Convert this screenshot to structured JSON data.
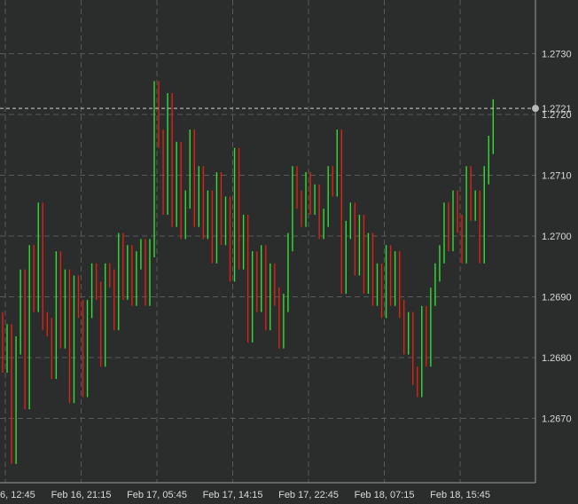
{
  "chart_data": {
    "type": "bar",
    "title": "",
    "xlabel": "",
    "ylabel": "",
    "ylim": [
      1.2659,
      1.2737
    ],
    "grid": true,
    "y_ticks": [
      "1.2670",
      "1.2680",
      "1.2690",
      "1.2700",
      "1.2710",
      "1.2720",
      "1.2730"
    ],
    "x_ticks": [
      "6, 12:45",
      "Feb 16, 21:15",
      "Feb 17, 05:45",
      "Feb 17, 14:15",
      "Feb 17, 22:45",
      "Feb 18, 07:15",
      "Feb 18, 15:45"
    ],
    "x_tick_index": [
      0,
      17,
      34,
      51,
      68,
      85,
      102
    ],
    "current_price": "1.2721",
    "colors": {
      "up": "#33dd33",
      "down": "#dd2211",
      "background": "#2b2c2c",
      "grid": "#5a5a5a",
      "axis": "#9a9a9a",
      "text": "#d9d9d9"
    },
    "bars": [
      [
        1.2686,
        1.2679
      ],
      [
        1.2679,
        1.2684
      ],
      [
        1.2684,
        1.2664
      ],
      [
        1.2664,
        1.2682
      ],
      [
        1.2682,
        1.2693
      ],
      [
        1.2693,
        1.2673
      ],
      [
        1.2673,
        1.2697
      ],
      [
        1.2697,
        1.2689
      ],
      [
        1.2689,
        1.2704
      ],
      [
        1.2704,
        1.2686
      ],
      [
        1.2686,
        1.2685
      ],
      [
        1.2685,
        1.2678
      ],
      [
        1.2678,
        1.2696
      ],
      [
        1.2696,
        1.2683
      ],
      [
        1.2683,
        1.2693
      ],
      [
        1.2693,
        1.2674
      ],
      [
        1.2674,
        1.2692
      ],
      [
        1.2692,
        1.2688
      ],
      [
        1.2688,
        1.2675
      ],
      [
        1.2675,
        1.2688
      ],
      [
        1.2688,
        1.2694
      ],
      [
        1.2694,
        1.2691
      ],
      [
        1.2691,
        1.268
      ],
      [
        1.268,
        1.2694
      ],
      [
        1.2694,
        1.2693
      ],
      [
        1.2693,
        1.2686
      ],
      [
        1.2686,
        1.2699
      ],
      [
        1.2699,
        1.2691
      ],
      [
        1.2691,
        1.2697
      ],
      [
        1.2697,
        1.269
      ],
      [
        1.269,
        1.2696
      ],
      [
        1.2696,
        1.2698
      ],
      [
        1.2698,
        1.269
      ],
      [
        1.269,
        1.2698
      ],
      [
        1.2698,
        1.2724
      ],
      [
        1.2724,
        1.2716
      ],
      [
        1.2716,
        1.2705
      ],
      [
        1.2705,
        1.2722
      ],
      [
        1.2722,
        1.2703
      ],
      [
        1.2703,
        1.2714
      ],
      [
        1.2714,
        1.2701
      ],
      [
        1.2701,
        1.2706
      ],
      [
        1.2706,
        1.2716
      ],
      [
        1.2716,
        1.2703
      ],
      [
        1.2703,
        1.271
      ],
      [
        1.271,
        1.2701
      ],
      [
        1.2701,
        1.2706
      ],
      [
        1.2706,
        1.2697
      ],
      [
        1.2697,
        1.2709
      ],
      [
        1.2709,
        1.27
      ],
      [
        1.27,
        1.2705
      ],
      [
        1.2705,
        1.2694
      ],
      [
        1.2694,
        1.2713
      ],
      [
        1.2713,
        1.2696
      ],
      [
        1.2696,
        1.2702
      ],
      [
        1.2702,
        1.2684
      ],
      [
        1.2684,
        1.2696
      ],
      [
        1.2696,
        1.2689
      ],
      [
        1.2689,
        1.2697
      ],
      [
        1.2697,
        1.2686
      ],
      [
        1.2686,
        1.2694
      ],
      [
        1.2694,
        1.269
      ],
      [
        1.269,
        1.2683
      ],
      [
        1.2683,
        1.2689
      ],
      [
        1.2689,
        1.2699
      ],
      [
        1.2699,
        1.271
      ],
      [
        1.271,
        1.2706
      ],
      [
        1.2706,
        1.2703
      ],
      [
        1.2703,
        1.2709
      ],
      [
        1.2709,
        1.2705
      ],
      [
        1.2705,
        1.2707
      ],
      [
        1.2707,
        1.2701
      ],
      [
        1.2701,
        1.2703
      ],
      [
        1.2703,
        1.271
      ],
      [
        1.271,
        1.2708
      ],
      [
        1.2708,
        1.2716
      ],
      [
        1.2716,
        1.2692
      ],
      [
        1.2692,
        1.2701
      ],
      [
        1.2701,
        1.2704
      ],
      [
        1.2704,
        1.2695
      ],
      [
        1.2695,
        1.2702
      ],
      [
        1.2702,
        1.2692
      ],
      [
        1.2692,
        1.2699
      ],
      [
        1.2699,
        1.269
      ],
      [
        1.269,
        1.2694
      ],
      [
        1.2694,
        1.2688
      ],
      [
        1.2688,
        1.2697
      ],
      [
        1.2697,
        1.269
      ],
      [
        1.269,
        1.2696
      ],
      [
        1.2696,
        1.2688
      ],
      [
        1.2688,
        1.2682
      ],
      [
        1.2682,
        1.2686
      ],
      [
        1.2686,
        1.2677
      ],
      [
        1.2677,
        1.2675
      ],
      [
        1.2675,
        1.2687
      ],
      [
        1.2687,
        1.268
      ],
      [
        1.268,
        1.269
      ],
      [
        1.269,
        1.2694
      ],
      [
        1.2694,
        1.2697
      ],
      [
        1.2697,
        1.2704
      ],
      [
        1.2704,
        1.2699
      ],
      [
        1.2699,
        1.2706
      ],
      [
        1.2706,
        1.2702
      ],
      [
        1.2702,
        1.2697
      ],
      [
        1.2697,
        1.271
      ],
      [
        1.271,
        1.2704
      ],
      [
        1.2704,
        1.2706
      ],
      [
        1.2706,
        1.2697
      ],
      [
        1.2697,
        1.271
      ],
      [
        1.271,
        1.2715
      ],
      [
        1.2715,
        1.2721
      ]
    ]
  }
}
